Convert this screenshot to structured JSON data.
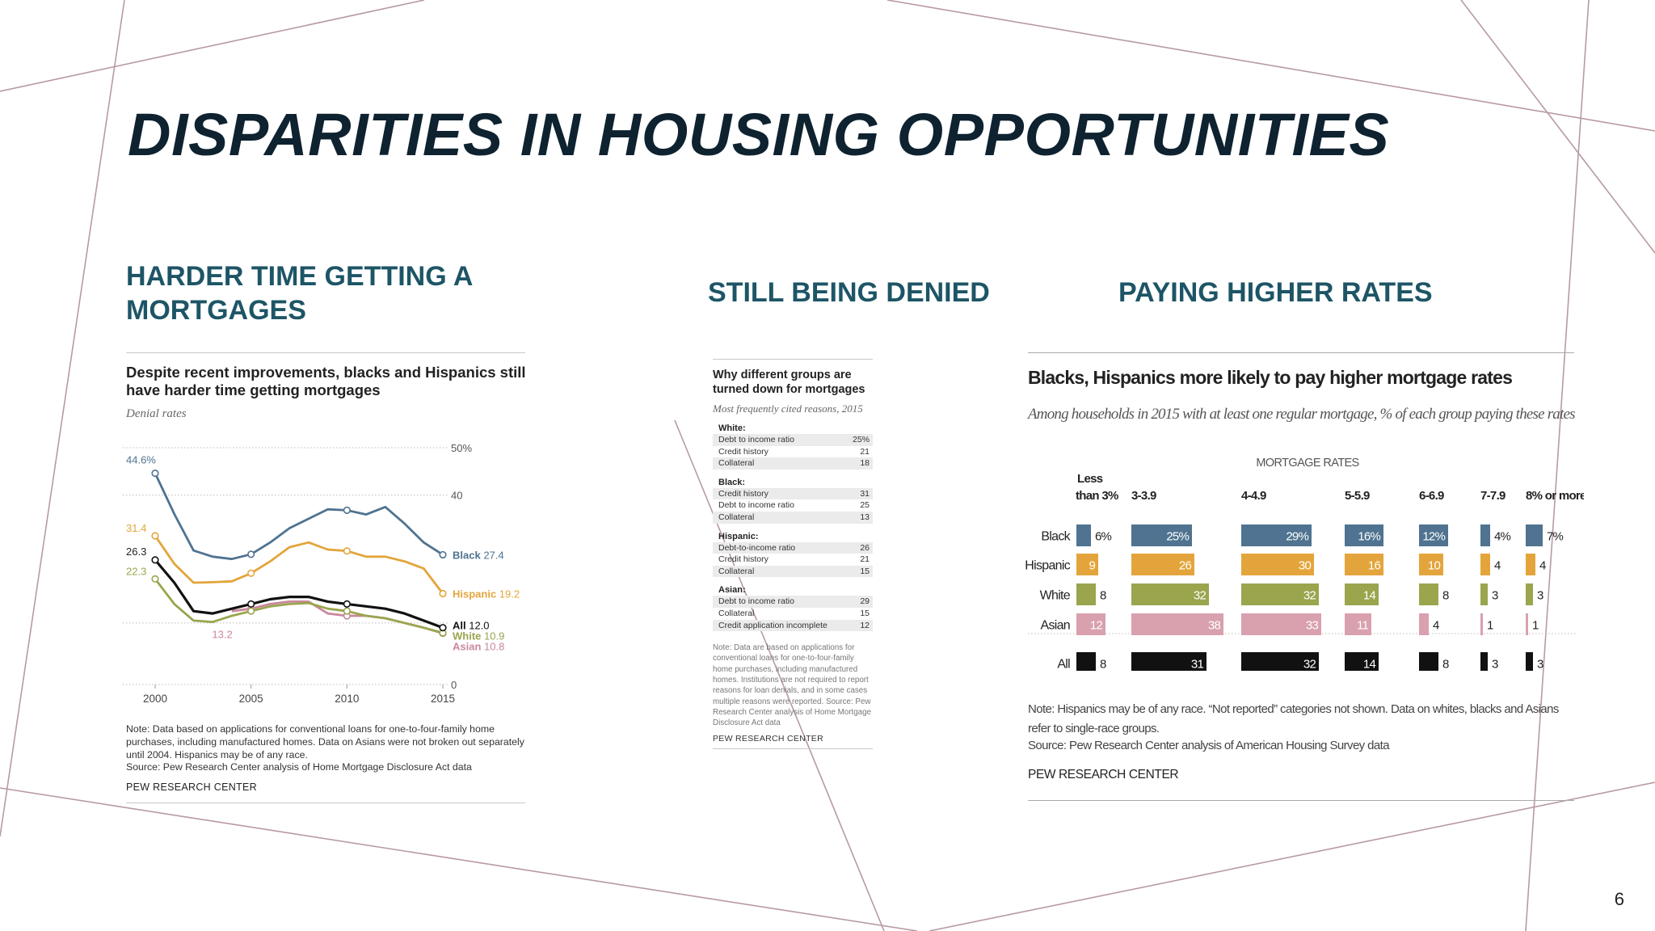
{
  "slide": {
    "title": "DISPARITIES IN HOUSING OPPORTUNITIES",
    "page_number": "6",
    "colors": {
      "title": "#0e2230",
      "section": "#1d5566",
      "deco_lines": "#b79aa2"
    }
  },
  "sections": {
    "mortgages": "HARDER TIME GETTING A MORTGAGES",
    "denied": "STILL BEING DENIED",
    "rates": "PAYING HIGHER RATES"
  },
  "panel1": {
    "title": "Despite recent improvements, blacks and Hispanics still have harder time getting mortgages",
    "subtitle": "Denial rates",
    "note": "Note: Data based on applications for conventional loans for one-to-four-family home purchases, including manufactured homes. Data on Asians were not broken out separately until 2004. Hispanics may be of any race.",
    "source": "Source: Pew Research Center analysis of Home Mortgage Disclosure Act data",
    "brand": "PEW RESEARCH CENTER"
  },
  "panel2": {
    "title": "Why different groups are turned down for mortgages",
    "subtitle": "Most frequently cited reasons, 2015",
    "groups": [
      {
        "name": "White:",
        "rows": [
          {
            "reason": "Debt to income ratio",
            "value": "25%"
          },
          {
            "reason": "Credit history",
            "value": "21"
          },
          {
            "reason": "Collateral",
            "value": "18"
          }
        ]
      },
      {
        "name": "Black:",
        "rows": [
          {
            "reason": "Credit history",
            "value": "31"
          },
          {
            "reason": "Debt to income ratio",
            "value": "25"
          },
          {
            "reason": "Collateral",
            "value": "13"
          }
        ]
      },
      {
        "name": "Hispanic:",
        "rows": [
          {
            "reason": "Debt-to-income ratio",
            "value": "26"
          },
          {
            "reason": "Credit history",
            "value": "21"
          },
          {
            "reason": "Collateral",
            "value": "15"
          }
        ]
      },
      {
        "name": "Asian:",
        "rows": [
          {
            "reason": "Debt to income ratio",
            "value": "29"
          },
          {
            "reason": "Collateral",
            "value": "15"
          },
          {
            "reason": "Credit application incomplete",
            "value": "12"
          }
        ]
      }
    ],
    "note": "Note: Data are based on applications for conventional loans for one-to-four-family home purchases, including manufactured homes. Institutions are not required to report reasons for loan denials, and in some cases multiple reasons were reported. Source: Pew Research Center analysis of Home Mortgage Disclosure Act data",
    "brand": "PEW RESEARCH CENTER"
  },
  "panel3": {
    "title": "Blacks, Hispanics more likely to pay higher mortgage rates",
    "subtitle": "Among households in 2015 with at least one regular mortgage, % of each group paying these rates",
    "note": "Note: Hispanics may be of any race. “Not reported” categories not shown. Data on whites, blacks and Asians refer to single-race groups.",
    "source": "Source: Pew Research Center analysis of American Housing Survey data",
    "brand": "PEW RESEARCH CENTER"
  },
  "chart_data": [
    {
      "type": "line",
      "title": "Despite recent improvements, blacks and Hispanics still have harder time getting mortgages",
      "subtitle": "Denial rates",
      "x": [
        2000,
        2001,
        2002,
        2003,
        2004,
        2005,
        2006,
        2007,
        2008,
        2009,
        2010,
        2011,
        2012,
        2013,
        2014,
        2015
      ],
      "xticks": [
        "2000",
        "2005",
        "2010",
        "2015"
      ],
      "yticks": [
        "0",
        "40",
        "50%"
      ],
      "ylim": [
        0,
        50
      ],
      "grid": "dotted, y = 0, 40, 50",
      "series": [
        {
          "name": "Black",
          "label": "Black 27.4",
          "color": "#4f7390",
          "values": [
            44.6,
            36.0,
            28.3,
            27.0,
            26.5,
            27.5,
            30.0,
            33.0,
            35.0,
            37.0,
            36.8,
            35.9,
            37.5,
            34.0,
            30.0,
            27.4
          ]
        },
        {
          "name": "Hispanic",
          "label": "Hispanic 19.2",
          "color": "#e3a53b",
          "values": [
            31.4,
            25.5,
            21.5,
            21.6,
            21.8,
            23.5,
            26.0,
            29.0,
            30.0,
            28.5,
            28.2,
            27.0,
            27.0,
            26.0,
            24.5,
            19.2
          ]
        },
        {
          "name": "All",
          "label": "All 12.0",
          "color": "#111111",
          "values": [
            26.3,
            21.5,
            15.5,
            15.0,
            16.0,
            17.0,
            18.0,
            18.5,
            18.5,
            17.5,
            17.0,
            16.5,
            16.0,
            15.0,
            13.5,
            12.0
          ]
        },
        {
          "name": "White",
          "label": "White 10.9",
          "color": "#9aa54d",
          "values": [
            22.3,
            17.0,
            13.5,
            13.2,
            14.5,
            15.5,
            16.5,
            17.0,
            17.2,
            16.0,
            15.5,
            14.5,
            14.0,
            13.0,
            12.0,
            10.9
          ]
        },
        {
          "name": "Asian",
          "label": "Asian 10.8",
          "color": "#c9879a",
          "x": [
            2004,
            2005,
            2006,
            2007,
            2008,
            2009,
            2010,
            2011,
            2012,
            2013,
            2014,
            2015
          ],
          "values": [
            15.5,
            16.0,
            17.0,
            17.5,
            17.5,
            15.0,
            14.5,
            14.5,
            14.0,
            13.0,
            12.0,
            10.8
          ]
        }
      ],
      "annotations": [
        {
          "text": "44.6%",
          "series": "Black",
          "x": 2000
        },
        {
          "text": "31.4",
          "series": "Hispanic",
          "x": 2000
        },
        {
          "text": "26.3",
          "series": "All",
          "x": 2000
        },
        {
          "text": "22.3",
          "series": "White",
          "x": 2000
        },
        {
          "text": "13.2",
          "series": "White",
          "x": 2003
        }
      ]
    },
    {
      "type": "bar",
      "title": "Blacks, Hispanics more likely to pay higher mortgage rates",
      "subtitle": "Among households in 2015 with at least one regular mortgage, % of each group paying these rates",
      "group_label": "MORTGAGE RATES",
      "categories": [
        "Less than 3%",
        "3-3.9",
        "4-4.9",
        "5-5.9",
        "6-6.9",
        "7-7.9",
        "8% or more"
      ],
      "series": [
        {
          "name": "Black",
          "color": "#4f7390",
          "values": [
            6,
            25,
            29,
            16,
            12,
            4,
            7
          ]
        },
        {
          "name": "Hispanic",
          "color": "#e3a53b",
          "values": [
            9,
            26,
            30,
            16,
            10,
            4,
            4
          ]
        },
        {
          "name": "White",
          "color": "#9aa54d",
          "values": [
            8,
            32,
            32,
            14,
            8,
            3,
            3
          ]
        },
        {
          "name": "Asian",
          "color": "#d9a0ae",
          "values": [
            12,
            38,
            33,
            11,
            4,
            1,
            1
          ]
        },
        {
          "name": "All",
          "color": "#111111",
          "values": [
            8,
            31,
            32,
            14,
            8,
            3,
            3
          ]
        }
      ],
      "value_suffix_black_row": "%"
    }
  ]
}
